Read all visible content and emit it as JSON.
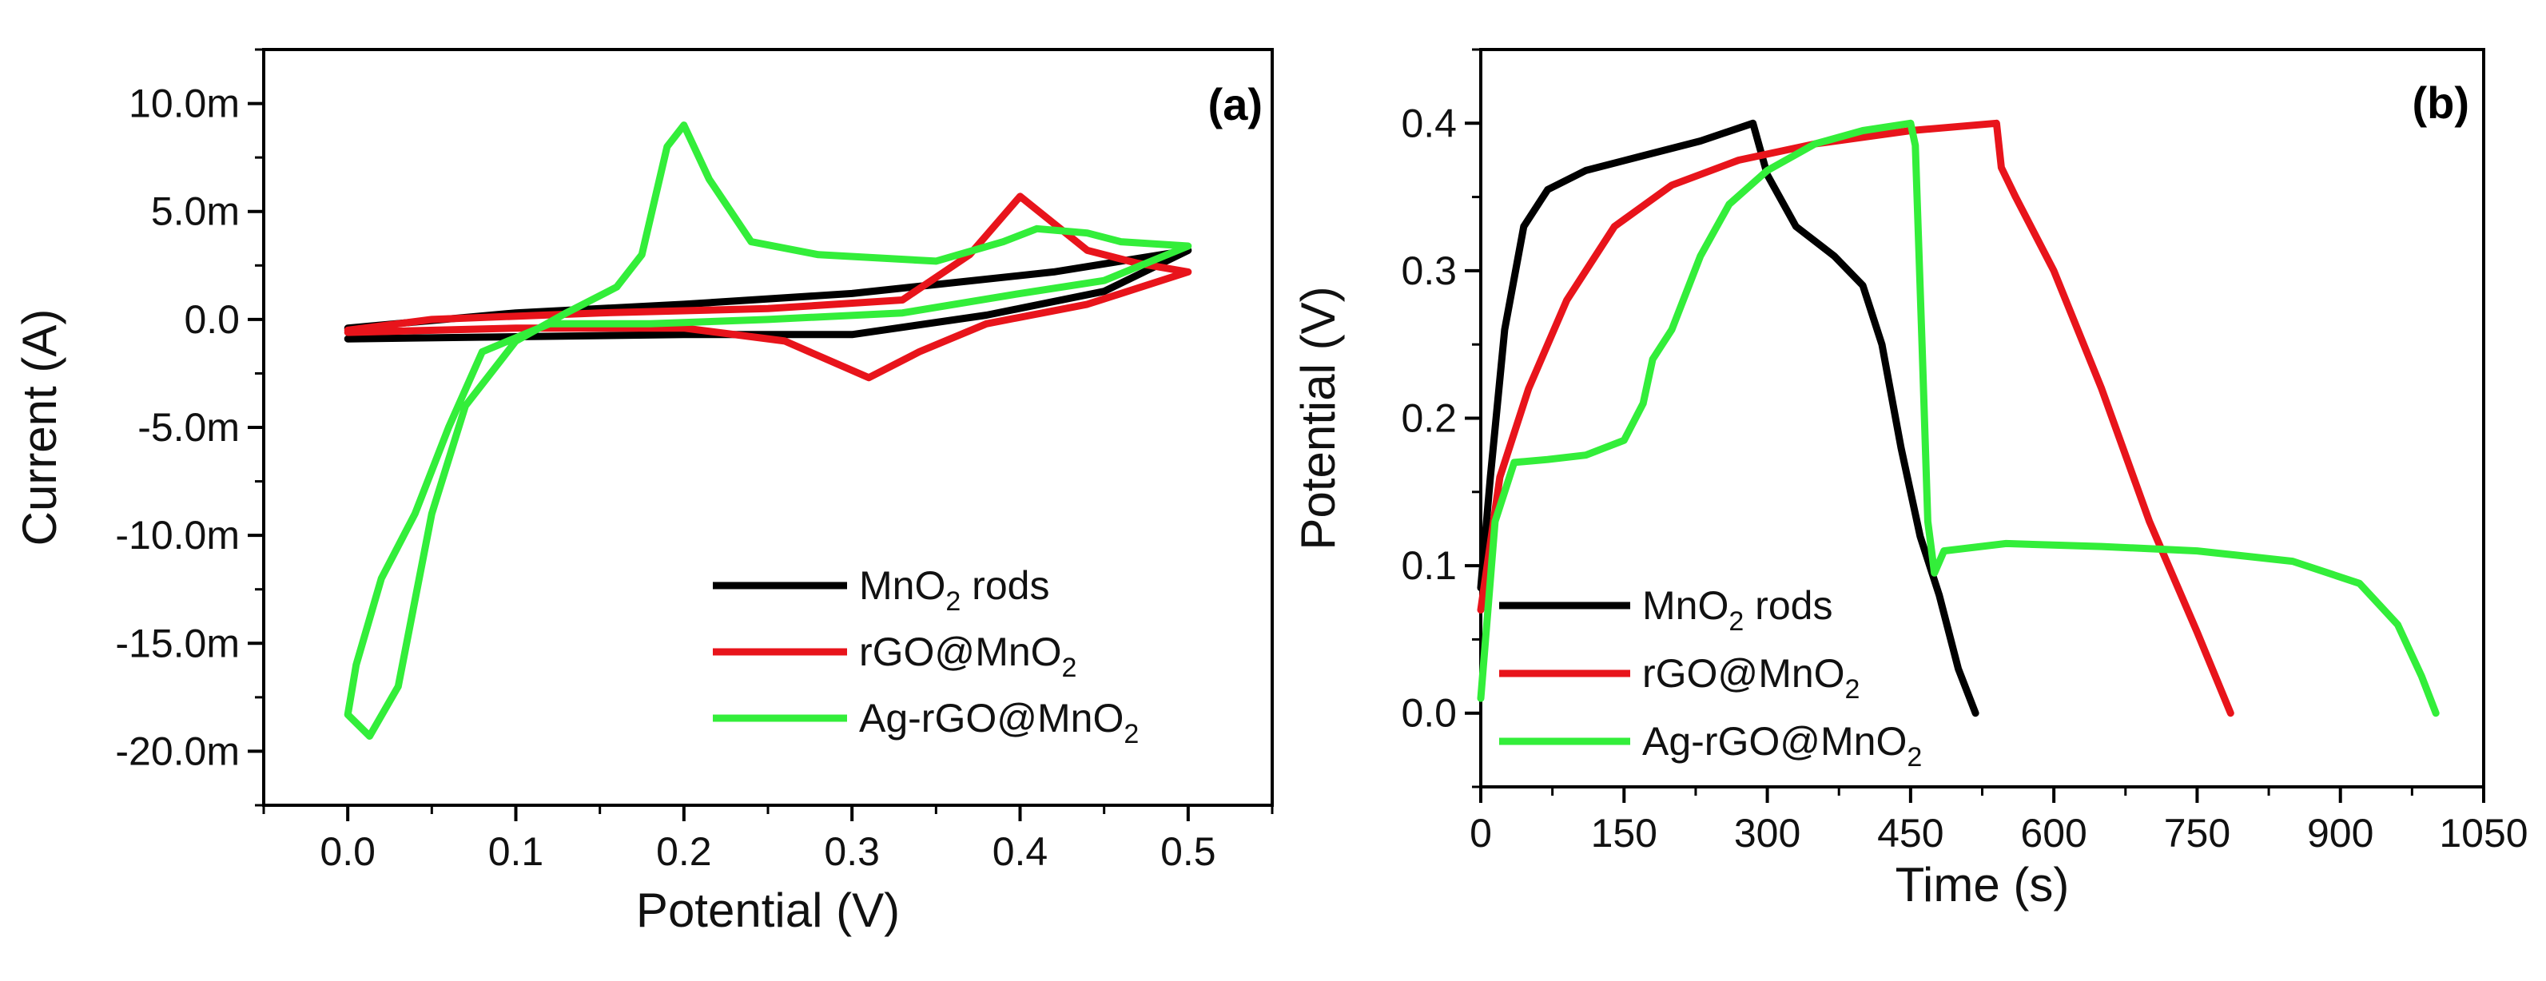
{
  "chart_data": [
    {
      "type": "line",
      "panel_label": "(a)",
      "xlabel": "Potential (V)",
      "ylabel": "Current (A)",
      "xlim": [
        -0.05,
        0.55
      ],
      "ylim": [
        -0.0225,
        0.0125
      ],
      "x_ticks": [
        0.0,
        0.1,
        0.2,
        0.3,
        0.4,
        0.5
      ],
      "x_tick_labels": [
        "0.0",
        "0.1",
        "0.2",
        "0.3",
        "0.4",
        "0.5"
      ],
      "y_ticks": [
        0.01,
        0.005,
        0.0,
        -0.005,
        -0.01,
        -0.015,
        -0.02
      ],
      "y_tick_labels": [
        "10.0m",
        "5.0m",
        "0.0",
        "-5.0m",
        "-10.0m",
        "-15.0m",
        "-20.0m"
      ],
      "legend_position": "bottom-right",
      "series": [
        {
          "name": "MnO2 rods",
          "label_main": "MnO",
          "label_sub": "2",
          "label_tail": " rods",
          "color": "#000000",
          "points": [
            [
              0.0,
              -0.0009
            ],
            [
              0.1,
              -0.0008
            ],
            [
              0.2,
              -0.0007
            ],
            [
              0.3,
              -0.0007
            ],
            [
              0.38,
              0.0002
            ],
            [
              0.45,
              0.0013
            ],
            [
              0.5,
              0.0032
            ],
            [
              0.42,
              0.0022
            ],
            [
              0.3,
              0.0012
            ],
            [
              0.2,
              0.0007
            ],
            [
              0.1,
              0.0003
            ],
            [
              0.0,
              -0.0004
            ]
          ]
        },
        {
          "name": "rGO@MnO2",
          "label_main": "rGO@MnO",
          "label_sub": "2",
          "label_tail": "",
          "color": "#e8141b",
          "points": [
            [
              0.0,
              -0.0006
            ],
            [
              0.1,
              -0.0004
            ],
            [
              0.2,
              -0.0004
            ],
            [
              0.26,
              -0.001
            ],
            [
              0.31,
              -0.0027
            ],
            [
              0.34,
              -0.0015
            ],
            [
              0.38,
              -0.0002
            ],
            [
              0.44,
              0.0007
            ],
            [
              0.5,
              0.0022
            ],
            [
              0.47,
              0.0026
            ],
            [
              0.44,
              0.0032
            ],
            [
              0.4,
              0.0057
            ],
            [
              0.37,
              0.003
            ],
            [
              0.33,
              0.0009
            ],
            [
              0.25,
              0.0005
            ],
            [
              0.15,
              0.0003
            ],
            [
              0.05,
              0.0
            ],
            [
              0.0,
              -0.0005
            ]
          ]
        },
        {
          "name": "Ag-rGO@MnO2",
          "label_main": "Ag-rGO@MnO",
          "label_sub": "2",
          "label_tail": "",
          "color": "#33ee3a",
          "points": [
            [
              0.0,
              -0.0183
            ],
            [
              0.013,
              -0.0193
            ],
            [
              0.03,
              -0.017
            ],
            [
              0.05,
              -0.009
            ],
            [
              0.07,
              -0.004
            ],
            [
              0.1,
              -0.001
            ],
            [
              0.13,
              0.0003
            ],
            [
              0.16,
              0.0015
            ],
            [
              0.175,
              0.003
            ],
            [
              0.19,
              0.008
            ],
            [
              0.2,
              0.009
            ],
            [
              0.215,
              0.0065
            ],
            [
              0.24,
              0.0036
            ],
            [
              0.28,
              0.003
            ],
            [
              0.35,
              0.0027
            ],
            [
              0.39,
              0.0036
            ],
            [
              0.41,
              0.0042
            ],
            [
              0.44,
              0.004
            ],
            [
              0.46,
              0.0036
            ],
            [
              0.5,
              0.0034
            ],
            [
              0.45,
              0.0018
            ],
            [
              0.4,
              0.0012
            ],
            [
              0.33,
              0.0003
            ],
            [
              0.25,
              0.0
            ],
            [
              0.18,
              -0.0002
            ],
            [
              0.12,
              -0.0002
            ],
            [
              0.08,
              -0.0015
            ],
            [
              0.06,
              -0.005
            ],
            [
              0.04,
              -0.009
            ],
            [
              0.02,
              -0.012
            ],
            [
              0.005,
              -0.016
            ],
            [
              0.0,
              -0.0183
            ]
          ]
        }
      ]
    },
    {
      "type": "line",
      "panel_label": "(b)",
      "xlabel": "Time (s)",
      "ylabel": "Potential (V)",
      "xlim": [
        0,
        1050
      ],
      "ylim": [
        -0.05,
        0.45
      ],
      "x_ticks": [
        0,
        150,
        300,
        450,
        600,
        750,
        900,
        1050
      ],
      "x_tick_labels": [
        "0",
        "150",
        "300",
        "450",
        "600",
        "750",
        "900",
        "1050"
      ],
      "y_ticks": [
        0.0,
        0.1,
        0.2,
        0.3,
        0.4
      ],
      "y_tick_labels": [
        "0.0",
        "0.1",
        "0.2",
        "0.3",
        "0.4"
      ],
      "legend_position": "bottom-left",
      "series": [
        {
          "name": "MnO2 rods",
          "label_main": "MnO",
          "label_sub": "2",
          "label_tail": " rods",
          "color": "#000000",
          "points": [
            [
              0,
              0.085
            ],
            [
              10,
              0.16
            ],
            [
              25,
              0.26
            ],
            [
              45,
              0.33
            ],
            [
              70,
              0.355
            ],
            [
              110,
              0.368
            ],
            [
              170,
              0.378
            ],
            [
              230,
              0.388
            ],
            [
              285,
              0.4
            ],
            [
              300,
              0.365
            ],
            [
              330,
              0.33
            ],
            [
              370,
              0.31
            ],
            [
              400,
              0.29
            ],
            [
              420,
              0.25
            ],
            [
              440,
              0.18
            ],
            [
              460,
              0.12
            ],
            [
              480,
              0.08
            ],
            [
              500,
              0.03
            ],
            [
              518,
              0.0
            ]
          ]
        },
        {
          "name": "rGO@MnO2",
          "label_main": "rGO@MnO",
          "label_sub": "2",
          "label_tail": "",
          "color": "#e8141b",
          "points": [
            [
              0,
              0.07
            ],
            [
              20,
              0.16
            ],
            [
              50,
              0.22
            ],
            [
              90,
              0.28
            ],
            [
              140,
              0.33
            ],
            [
              200,
              0.358
            ],
            [
              270,
              0.375
            ],
            [
              350,
              0.386
            ],
            [
              450,
              0.395
            ],
            [
              540,
              0.4
            ],
            [
              545,
              0.37
            ],
            [
              560,
              0.35
            ],
            [
              600,
              0.3
            ],
            [
              650,
              0.22
            ],
            [
              700,
              0.13
            ],
            [
              750,
              0.055
            ],
            [
              785,
              0.0
            ]
          ]
        },
        {
          "name": "Ag-rGO@MnO2",
          "label_main": "Ag-rGO@MnO",
          "label_sub": "2",
          "label_tail": "",
          "color": "#33ee3a",
          "points": [
            [
              0,
              0.01
            ],
            [
              15,
              0.13
            ],
            [
              35,
              0.17
            ],
            [
              70,
              0.172
            ],
            [
              110,
              0.175
            ],
            [
              150,
              0.185
            ],
            [
              170,
              0.21
            ],
            [
              180,
              0.24
            ],
            [
              200,
              0.26
            ],
            [
              230,
              0.31
            ],
            [
              260,
              0.345
            ],
            [
              300,
              0.368
            ],
            [
              350,
              0.386
            ],
            [
              400,
              0.395
            ],
            [
              450,
              0.4
            ],
            [
              455,
              0.385
            ],
            [
              462,
              0.25
            ],
            [
              468,
              0.13
            ],
            [
              475,
              0.095
            ],
            [
              485,
              0.11
            ],
            [
              550,
              0.115
            ],
            [
              650,
              0.113
            ],
            [
              750,
              0.11
            ],
            [
              850,
              0.103
            ],
            [
              920,
              0.088
            ],
            [
              960,
              0.06
            ],
            [
              985,
              0.025
            ],
            [
              1000,
              0.0
            ]
          ]
        }
      ]
    }
  ]
}
